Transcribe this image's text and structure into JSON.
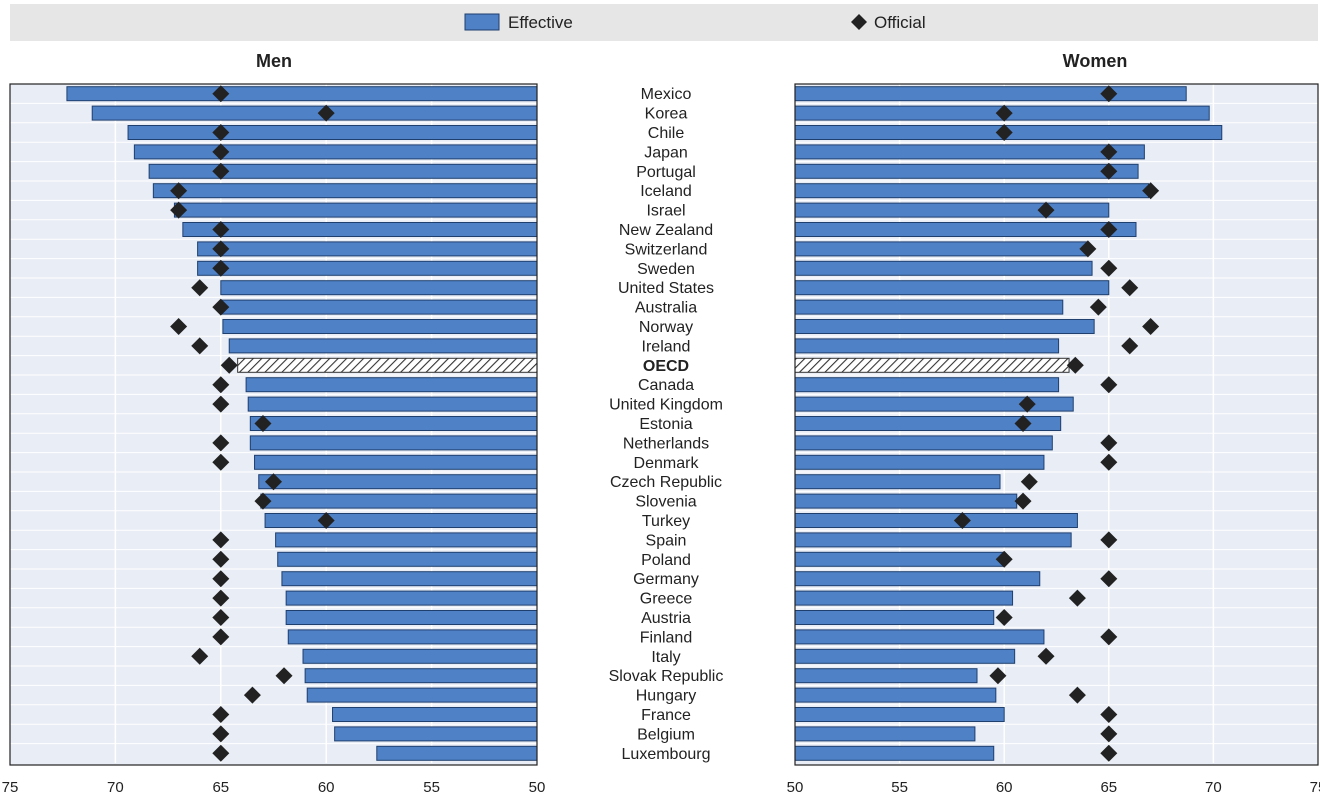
{
  "chart_data": {
    "type": "bar",
    "legend": {
      "effective_label": "Effective",
      "official_label": "Official",
      "placement": "top"
    },
    "colors": {
      "bar": "#4f81c7",
      "bar_stroke": "#1f3f6e",
      "marker": "#222222",
      "plot_bg": "#e9edf5",
      "legend_bg": "#e6e6e6",
      "oecd_hatch": "#333333"
    },
    "categories": [
      "Mexico",
      "Korea",
      "Chile",
      "Japan",
      "Portugal",
      "Iceland",
      "Israel",
      "New Zealand",
      "Switzerland",
      "Sweden",
      "United States",
      "Australia",
      "Norway",
      "Ireland",
      "OECD",
      "Canada",
      "United Kingdom",
      "Estonia",
      "Netherlands",
      "Denmark",
      "Czech Republic",
      "Slovenia",
      "Turkey",
      "Spain",
      "Poland",
      "Germany",
      "Greece",
      "Austria",
      "Finland",
      "Italy",
      "Slovak Republic",
      "Hungary",
      "France",
      "Belgium",
      "Luxembourg"
    ],
    "highlight_category": "OECD",
    "panels": [
      {
        "title": "Men",
        "direction": "reversed",
        "xlim": [
          50,
          75
        ],
        "ticks": [
          75,
          70,
          65,
          60,
          55,
          50
        ],
        "grid": true,
        "effective": [
          72.3,
          71.1,
          69.4,
          69.1,
          68.4,
          68.2,
          67.2,
          66.8,
          66.1,
          66.1,
          65.0,
          65.0,
          64.9,
          64.6,
          64.2,
          63.8,
          63.7,
          63.6,
          63.6,
          63.4,
          63.2,
          63.1,
          62.9,
          62.4,
          62.3,
          62.1,
          61.9,
          61.9,
          61.8,
          61.1,
          61.0,
          60.9,
          59.7,
          59.6,
          57.6
        ],
        "official": [
          65,
          60,
          65,
          65,
          65,
          67,
          67,
          65,
          65,
          65,
          66,
          65,
          67,
          66,
          64.6,
          65,
          65,
          63,
          65,
          65,
          62.5,
          63,
          60,
          65,
          65,
          65,
          65,
          65,
          65,
          66,
          62,
          63.5,
          65,
          65,
          65
        ]
      },
      {
        "title": "Women",
        "direction": "normal",
        "xlim": [
          50,
          75
        ],
        "ticks": [
          50,
          55,
          60,
          65,
          70,
          75
        ],
        "grid": true,
        "effective": [
          68.7,
          69.8,
          70.4,
          66.7,
          66.4,
          66.9,
          65.0,
          66.3,
          64.0,
          64.2,
          65.0,
          62.8,
          64.3,
          62.6,
          63.1,
          62.6,
          63.3,
          62.7,
          62.3,
          61.9,
          59.8,
          60.6,
          63.5,
          63.2,
          60.0,
          61.7,
          60.4,
          59.5,
          61.9,
          60.5,
          58.7,
          59.6,
          60.0,
          58.6,
          59.5
        ],
        "official": [
          65,
          60,
          60,
          65,
          65,
          67,
          62,
          65,
          64,
          65,
          66,
          64.5,
          67,
          66,
          63.4,
          65,
          61.1,
          60.9,
          65,
          65,
          61.2,
          60.9,
          58,
          65,
          60,
          65,
          63.5,
          60,
          65,
          62,
          59.7,
          63.5,
          65,
          65,
          65
        ]
      }
    ]
  }
}
